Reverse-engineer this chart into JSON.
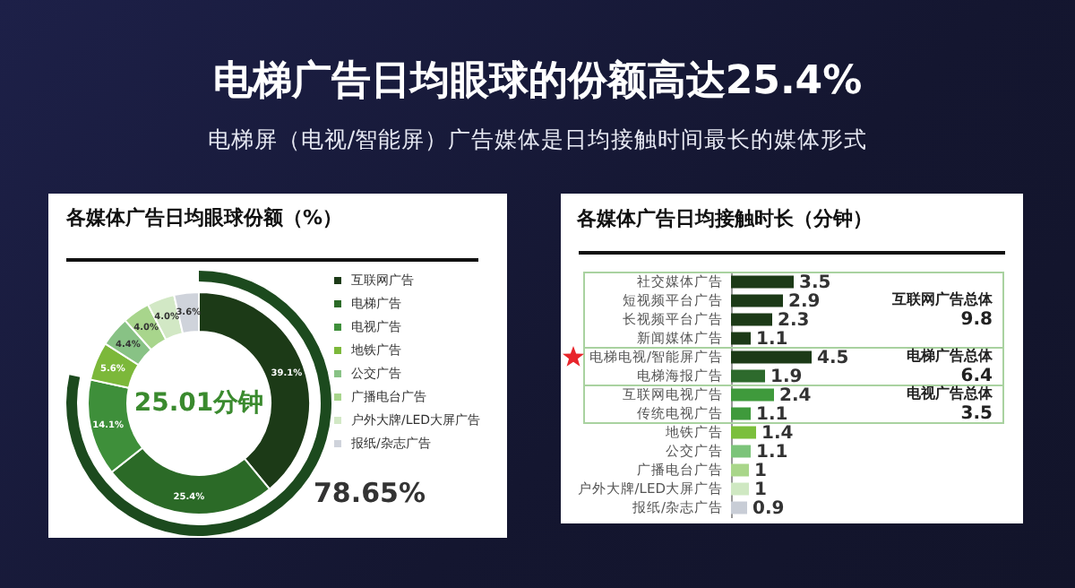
{
  "chart_data": [
    {
      "type": "donut",
      "title": "各媒体广告日均眼球份额（%）",
      "categories": [
        "互联网广告",
        "电梯广告",
        "电视广告",
        "地铁广告",
        "公交广告",
        "广播电台广告",
        "户外大牌/LED大屏广告",
        "报纸/杂志广告"
      ],
      "values": [
        39.1,
        25.4,
        14.1,
        5.6,
        4.4,
        4.0,
        4.0,
        3.6
      ],
      "value_labels": [
        "39.1%",
        "25.4%",
        "14.1%",
        "5.6%",
        "4.4%",
        "4.0%",
        "4.0%",
        "3.6%"
      ],
      "colors": [
        "#1c3a17",
        "#2b6a27",
        "#3e8f3a",
        "#7cb83a",
        "#88c285",
        "#a8d58c",
        "#d2e8c5",
        "#cfd3db"
      ],
      "legend": "right",
      "annotations": [
        "电梯广告日均眼球的份额高达25.4%",
        "电梯屏（电视/智能屏）广告媒体是日均接触时间最长的媒体形式",
        "25.01分钟",
        "78.65%"
      ]
    },
    {
      "type": "bar",
      "orientation": "horizontal",
      "title": "各媒体广告日均接触时长（分钟）",
      "categories": [
        "社交媒体广告",
        "短视频平台广告",
        "长视频平台广告",
        "新闻媒体广告",
        "电梯电视/智能屏广告",
        "电梯海报广告",
        "互联网电视广告",
        "传统电视广告",
        "地铁广告",
        "公交广告",
        "广播电台广告",
        "户外大牌/LED大屏广告",
        "报纸/杂志广告"
      ],
      "values": [
        3.5,
        2.9,
        2.3,
        1.1,
        4.5,
        1.9,
        2.4,
        1.1,
        1.4,
        1.1,
        1.0,
        1.0,
        0.9
      ],
      "colors": [
        "#1c3a17",
        "#1c3a17",
        "#1c3a17",
        "#1c3a17",
        "#1c3a17",
        "#2d6a2c",
        "#3f9a3c",
        "#3f9a3c",
        "#7bbf3c",
        "#7cc47a",
        "#a9d68a",
        "#cfe8c2",
        "#c8cdd6"
      ],
      "data_labels": true,
      "annotations": [
        "互联网广告总体",
        "9.8",
        "电梯广告总体",
        "6.4",
        "电视广告总体",
        "3.5"
      ]
    }
  ]
}
